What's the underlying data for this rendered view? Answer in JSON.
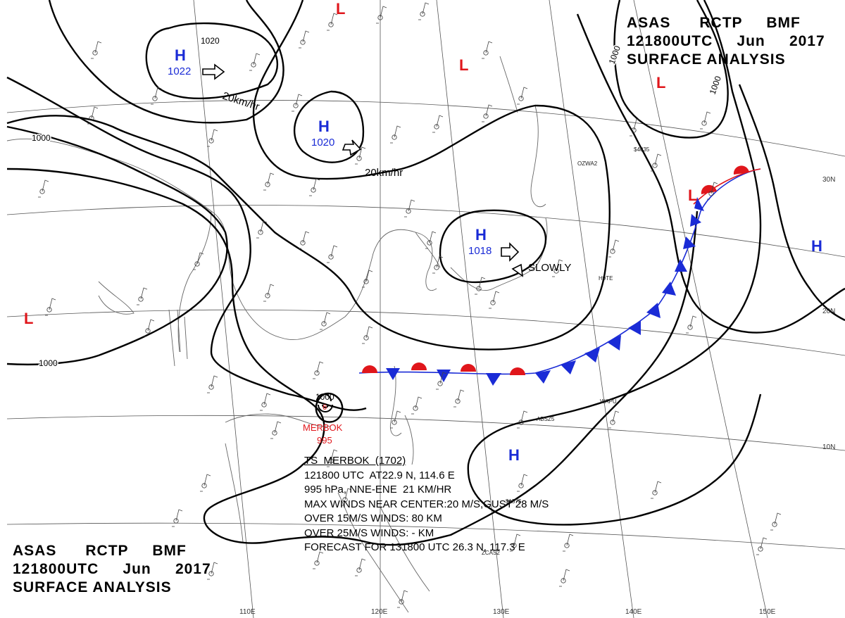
{
  "title": {
    "line1": [
      "ASAS",
      "RCTP",
      "BMF"
    ],
    "line2": [
      "121800UTC",
      "Jun",
      "2017"
    ],
    "line3": "SURFACE ANALYSIS"
  },
  "centers": [
    {
      "type": "H",
      "pressure": "1022",
      "color": "#1a2bd6"
    },
    {
      "type": "H",
      "pressure": "1020",
      "color": "#1a2bd6"
    },
    {
      "type": "H",
      "pressure": "1018",
      "color": "#1a2bd6"
    },
    {
      "type": "H",
      "pressure": "",
      "color": "#1a2bd6"
    },
    {
      "type": "H",
      "pressure": "",
      "color": "#1a2bd6"
    },
    {
      "type": "L",
      "pressure": "",
      "color": "#e0161b"
    }
  ],
  "isobar_labels": [
    "1020",
    "1000",
    "1000",
    "1000",
    "1000"
  ],
  "motion_labels": [
    "20km/hr",
    "20km/hr",
    "SLOWLY"
  ],
  "storm": {
    "name": "MERBOK",
    "pressure": "995",
    "center_isobar": "1000",
    "color": "#e0161b",
    "info_lines": [
      "TS  MERBOK  (1702)",
      "121800 UTC  AT22.9 N, 114.6 E",
      "995 hPa, NNE-ENE  21 KM/HR",
      "MAX WINDS NEAR CENTER:20 M/S,GUST 28 M/S",
      "OVER 15M/S WINDS: 80 KM",
      "OVER 25M/S WINDS: - KM",
      "FORECAST FOR 131800 UTC 26.3 N, 117.3 E"
    ]
  },
  "latitude_labels": [
    "30N",
    "20N",
    "10N"
  ],
  "longitude_labels": [
    "110E",
    "120E",
    "130E",
    "140E",
    "150E"
  ],
  "station_codes": [
    "OZWA2",
    "H9TE",
    "WAPU",
    "ABSZ5",
    "ZCAS2",
    "$4035",
    "$157$"
  ],
  "colors": {
    "high": "#1a2bd6",
    "low": "#e0161b",
    "warm_front": "#e0161b",
    "cold_front": "#1a2bd6"
  }
}
